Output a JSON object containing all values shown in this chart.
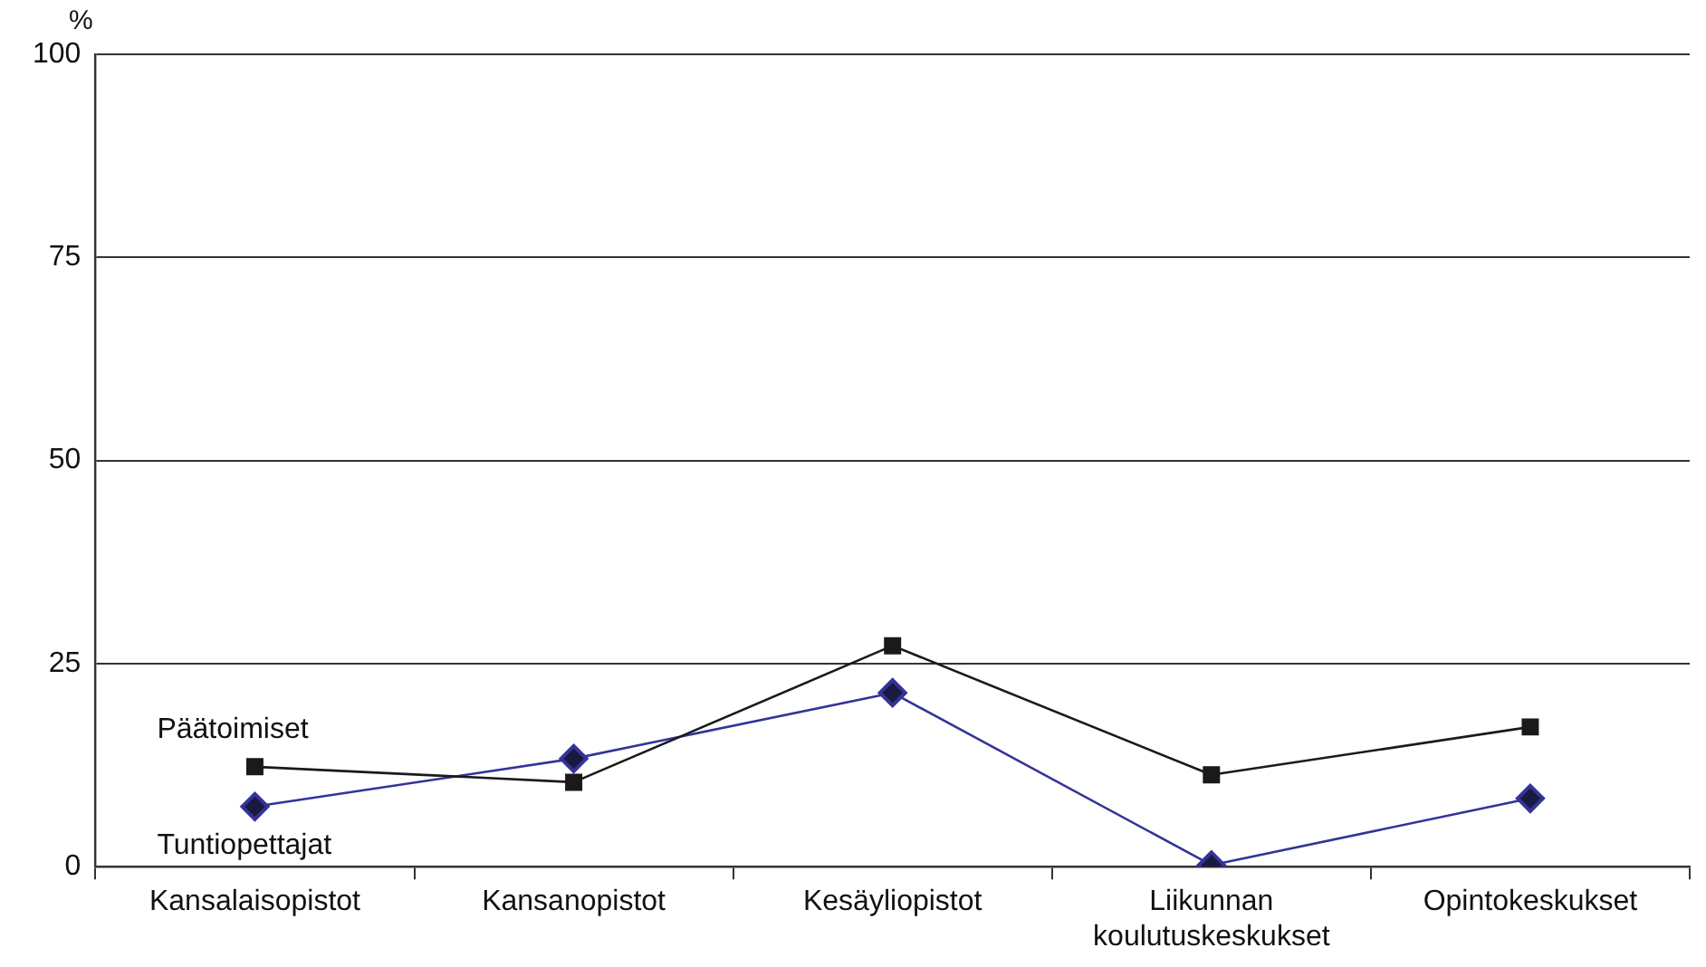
{
  "chart_data": {
    "type": "line",
    "ylabel": "%",
    "categories": [
      "Kansalaisopistot",
      "Kansanopistot",
      "Kesäyliopistot",
      "Liikunnan koulutuskeskukset",
      "Opintokeskukset"
    ],
    "series": [
      {
        "name": "Päätoimiset",
        "color": "#1a1a1a",
        "marker": "square",
        "values": [
          12.3,
          10.4,
          27.2,
          11.3,
          17.2
        ]
      },
      {
        "name": "Tuntiopettajat",
        "color": "#333399",
        "marker": "diamond",
        "values": [
          7.4,
          13.3,
          21.4,
          0.2,
          8.4
        ]
      }
    ],
    "ylim": [
      0,
      100
    ],
    "yticks": [
      0,
      25,
      50,
      75,
      100
    ],
    "grid": "y",
    "legend": false
  }
}
